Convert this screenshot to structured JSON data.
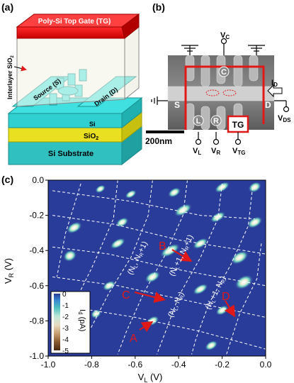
{
  "panels": {
    "a": {
      "label": "(a)",
      "top_gate": "Poly-Si Top Gate (TG)",
      "interlayer": "Interlayer SiO",
      "interlayer_sub": "2",
      "source": "Source (S)",
      "drain": "Drain (D)",
      "si": "Si",
      "sio2": "SiO",
      "sio2_sub": "2",
      "substrate": "Si Substrate"
    },
    "b": {
      "label": "(b)",
      "vc": "V",
      "vc_sub": "C",
      "id": "I",
      "id_sub": "D",
      "vds": "V",
      "vds_sub": "DS",
      "s": "S",
      "d": "D",
      "c": "C",
      "l": "L",
      "r": "R",
      "tg": "TG",
      "scale": "200nm",
      "vl": "V",
      "vl_sub": "L",
      "vr": "V",
      "vr_sub": "R",
      "vtg": "V",
      "vtg_sub": "TG"
    },
    "c": {
      "label": "(c)",
      "colorbar_label": "I",
      "colorbar_label_sub": "d",
      "colorbar_label_unit": " (pA)",
      "colorbar_ticks": [
        "0",
        "-1",
        "-2",
        "-3",
        "-4",
        "-5"
      ],
      "arrows": [
        "A",
        "B",
        "C",
        "D"
      ],
      "region_labels": [
        {
          "pre": "(N",
          "s1": "L",
          "mid": "+1, N",
          "s2": "R",
          "post": ")"
        },
        {
          "pre": "(N",
          "s1": "L",
          "mid": ", N",
          "s2": "R",
          "post": ")"
        },
        {
          "pre": "(N",
          "s1": "L",
          "mid": ", N",
          "s2": "R",
          "post": "+1)"
        },
        {
          "pre": "(N",
          "s1": "L",
          "mid": "+1, N",
          "s2": "R",
          "post": "+1)"
        }
      ]
    }
  },
  "chart_data": {
    "type": "heatmap",
    "title": "",
    "xlabel": "V",
    "xlabel_sub": "L",
    "xlabel_unit": " (V)",
    "ylabel": "V",
    "ylabel_sub": "R",
    "ylabel_unit": " (V)",
    "xlim": [
      -1.0,
      0.0
    ],
    "ylim": [
      -1.0,
      0.0
    ],
    "x_ticks": [
      -1.0,
      -0.8,
      -0.6,
      -0.4,
      -0.2,
      0.0
    ],
    "x_tick_labels": [
      "-1.0",
      "-0.8",
      "-0.6",
      "-0.4",
      "-0.2",
      "0.0"
    ],
    "y_ticks": [
      0.0,
      -0.2,
      -0.4,
      -0.6,
      -0.8,
      -1.0
    ],
    "y_tick_labels": [
      "0.0",
      "-0.2",
      "-0.4",
      "-0.6",
      "-0.8",
      "-1.0"
    ],
    "colorscale": {
      "min": -5,
      "max": 0,
      "unit": "pA"
    },
    "background_color": "#2a3c9a",
    "line_color": "#ffffff",
    "line_style": "dashed"
  }
}
